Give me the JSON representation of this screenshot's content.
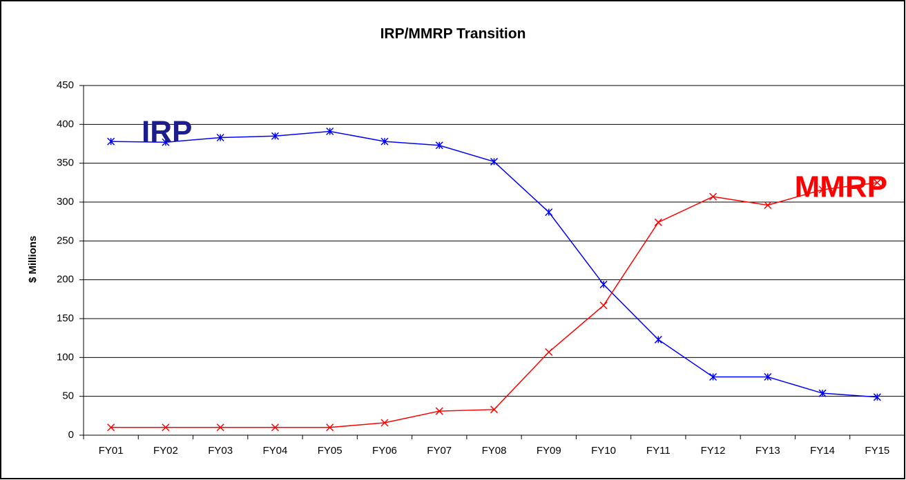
{
  "chart_data": {
    "type": "line",
    "title": "IRP/MMRP Transition",
    "y_label": "$ Millions",
    "categories": [
      "FY01",
      "FY02",
      "FY03",
      "FY04",
      "FY05",
      "FY06",
      "FY07",
      "FY08",
      "FY09",
      "FY10",
      "FY11",
      "FY12",
      "FY13",
      "FY14",
      "FY15"
    ],
    "series": [
      {
        "name": "IRP",
        "color": "#0000ff",
        "marker": "asterisk",
        "values": [
          378,
          377,
          383,
          385,
          391,
          378,
          373,
          352,
          287,
          194,
          123,
          75,
          75,
          54,
          49
        ]
      },
      {
        "name": "MMRP",
        "color": "#ff0000",
        "marker": "x",
        "values": [
          10,
          10,
          10,
          10,
          10,
          16,
          31,
          33,
          107,
          167,
          274,
          307,
          296,
          316,
          325
        ]
      }
    ],
    "annotations": [
      {
        "text": "IRP",
        "color": "#1c1c8c"
      },
      {
        "text": "MMRP",
        "color": "#ff0000"
      }
    ],
    "ylim": [
      0,
      450
    ],
    "yticks": [
      0,
      50,
      100,
      150,
      200,
      250,
      300,
      350,
      400,
      450
    ],
    "grid": true
  }
}
